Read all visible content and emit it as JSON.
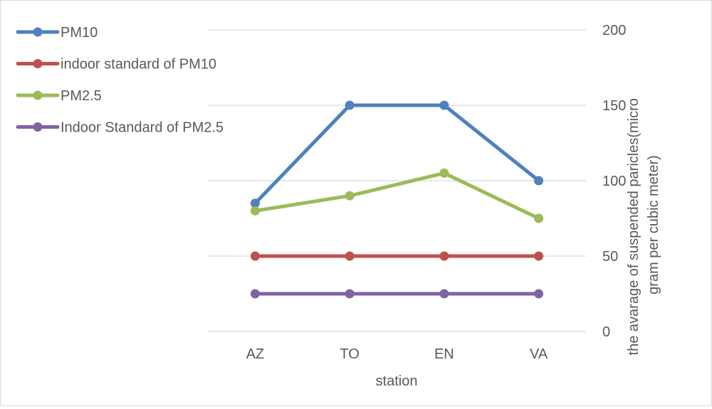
{
  "chart_data": {
    "type": "line",
    "xlabel": "station",
    "ylabel": "the avarage of suspended paricles(micro gram per cubic meter)",
    "ylabel_lines": [
      "the avarage of suspended paricles(micro",
      "gram per cubic meter)"
    ],
    "categories": [
      "AZ",
      "TO",
      "EN",
      "VA"
    ],
    "ylim": [
      0,
      200
    ],
    "yticks": [
      0,
      50,
      100,
      150,
      200
    ],
    "y_axis_side": "right",
    "grid": true,
    "legend_position": "top-left",
    "series": [
      {
        "name": "PM10",
        "color": "#4f81bd",
        "values": [
          85,
          150,
          150,
          100
        ]
      },
      {
        "name": "indoor standard of PM10",
        "color": "#c0504d",
        "values": [
          50,
          50,
          50,
          50
        ]
      },
      {
        "name": "PM2.5",
        "color": "#9bbb59",
        "values": [
          80,
          90,
          105,
          75
        ]
      },
      {
        "name": "Indoor Standard of PM2.5",
        "color": "#8064a2",
        "values": [
          25,
          25,
          25,
          25
        ]
      }
    ]
  }
}
